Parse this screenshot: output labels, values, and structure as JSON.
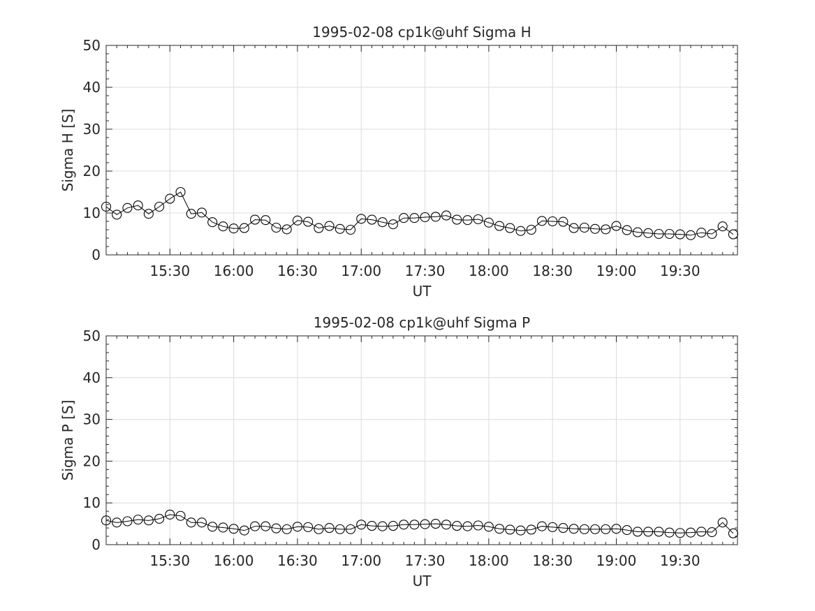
{
  "chart_data": [
    {
      "type": "line",
      "title": "1995-02-08  cp1k@uhf Sigma H",
      "xlabel": "UT",
      "ylabel": "Sigma H [S]",
      "ylim": [
        0,
        50
      ],
      "yticks": [
        0,
        10,
        20,
        30,
        40,
        50
      ],
      "xlim": [
        "15:00",
        "19:57"
      ],
      "xticks": [
        "15:30",
        "16:00",
        "16:30",
        "17:00",
        "17:30",
        "18:00",
        "18:30",
        "19:00",
        "19:30"
      ],
      "grid": true,
      "marker": "open-circle",
      "x": [
        "15:00",
        "15:05",
        "15:10",
        "15:15",
        "15:20",
        "15:25",
        "15:30",
        "15:35",
        "15:40",
        "15:45",
        "15:50",
        "15:55",
        "16:00",
        "16:05",
        "16:10",
        "16:15",
        "16:20",
        "16:25",
        "16:30",
        "16:35",
        "16:40",
        "16:45",
        "16:50",
        "16:55",
        "17:00",
        "17:05",
        "17:10",
        "17:15",
        "17:20",
        "17:25",
        "17:30",
        "17:35",
        "17:40",
        "17:45",
        "17:50",
        "17:55",
        "18:00",
        "18:05",
        "18:10",
        "18:15",
        "18:20",
        "18:25",
        "18:30",
        "18:35",
        "18:40",
        "18:45",
        "18:50",
        "18:55",
        "19:00",
        "19:05",
        "19:10",
        "19:15",
        "19:20",
        "19:25",
        "19:30",
        "19:35",
        "19:40",
        "19:45",
        "19:50",
        "19:55"
      ],
      "values": [
        11.5,
        9.6,
        11.2,
        11.8,
        9.8,
        11.5,
        13.4,
        15.0,
        9.8,
        10.1,
        7.8,
        6.8,
        6.3,
        6.4,
        8.4,
        8.3,
        6.5,
        6.1,
        8.2,
        7.9,
        6.4,
        6.9,
        6.2,
        6.0,
        8.6,
        8.4,
        7.8,
        7.3,
        8.8,
        8.8,
        9.0,
        9.1,
        9.4,
        8.4,
        8.3,
        8.5,
        7.7,
        6.9,
        6.4,
        5.7,
        6.0,
        8.1,
        8.0,
        7.9,
        6.4,
        6.5,
        6.2,
        6.1,
        6.9,
        5.9,
        5.4,
        5.2,
        5.0,
        5.0,
        4.9,
        4.7,
        5.3,
        5.0,
        6.8,
        4.9
      ]
    },
    {
      "type": "line",
      "title": "1995-02-08  cp1k@uhf Sigma P",
      "xlabel": "UT",
      "ylabel": "Sigma P [S]",
      "ylim": [
        0,
        50
      ],
      "yticks": [
        0,
        10,
        20,
        30,
        40,
        50
      ],
      "xlim": [
        "15:00",
        "19:57"
      ],
      "xticks": [
        "15:30",
        "16:00",
        "16:30",
        "17:00",
        "17:30",
        "18:00",
        "18:30",
        "19:00",
        "19:30"
      ],
      "grid": true,
      "marker": "open-circle",
      "x": [
        "15:00",
        "15:05",
        "15:10",
        "15:15",
        "15:20",
        "15:25",
        "15:30",
        "15:35",
        "15:40",
        "15:45",
        "15:50",
        "15:55",
        "16:00",
        "16:05",
        "16:10",
        "16:15",
        "16:20",
        "16:25",
        "16:30",
        "16:35",
        "16:40",
        "16:45",
        "16:50",
        "16:55",
        "17:00",
        "17:05",
        "17:10",
        "17:15",
        "17:20",
        "17:25",
        "17:30",
        "17:35",
        "17:40",
        "17:45",
        "17:50",
        "17:55",
        "18:00",
        "18:05",
        "18:10",
        "18:15",
        "18:20",
        "18:25",
        "18:30",
        "18:35",
        "18:40",
        "18:45",
        "18:50",
        "18:55",
        "19:00",
        "19:05",
        "19:10",
        "19:15",
        "19:20",
        "19:25",
        "19:30",
        "19:35",
        "19:40",
        "19:45",
        "19:50",
        "19:55"
      ],
      "values": [
        5.8,
        5.3,
        5.6,
        6.0,
        5.8,
        6.2,
        7.2,
        6.9,
        5.3,
        5.3,
        4.3,
        4.1,
        3.8,
        3.4,
        4.4,
        4.4,
        3.9,
        3.7,
        4.3,
        4.2,
        3.7,
        4.0,
        3.7,
        3.7,
        4.8,
        4.5,
        4.4,
        4.5,
        4.8,
        4.8,
        4.9,
        5.0,
        4.8,
        4.5,
        4.4,
        4.6,
        4.3,
        3.8,
        3.6,
        3.4,
        3.6,
        4.4,
        4.2,
        4.0,
        3.8,
        3.7,
        3.7,
        3.7,
        3.8,
        3.5,
        3.1,
        3.1,
        3.1,
        2.9,
        2.8,
        2.9,
        3.1,
        3.0,
        5.3,
        2.7
      ]
    }
  ]
}
